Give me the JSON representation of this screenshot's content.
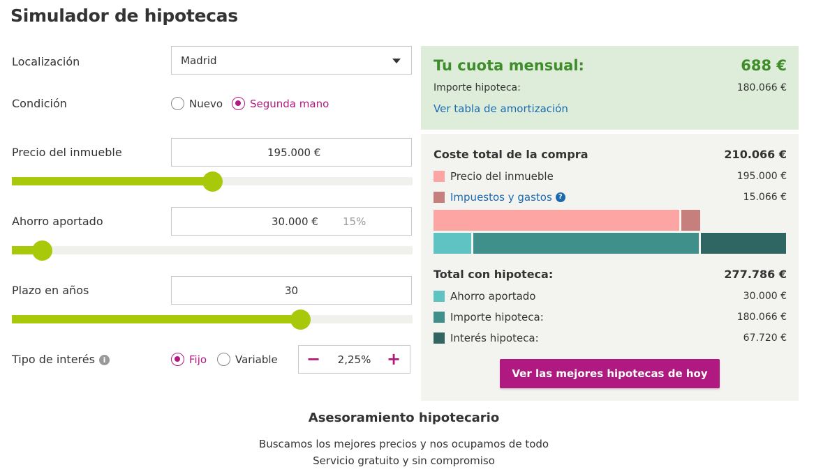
{
  "page": {
    "title": "Simulador de hipotecas"
  },
  "form": {
    "location": {
      "label": "Localización",
      "value": "Madrid"
    },
    "condition": {
      "label": "Condición",
      "options": [
        "Nuevo",
        "Segunda mano"
      ],
      "selected": "Segunda mano"
    },
    "price": {
      "label": "Precio del inmueble",
      "value": "195.000 €",
      "slider_fraction": 0.5
    },
    "savings": {
      "label": "Ahorro aportado",
      "value": "30.000 €",
      "percent": "15%",
      "slider_fraction": 0.075
    },
    "term": {
      "label": "Plazo en años",
      "value": "30",
      "slider_fraction": 0.72
    },
    "interest": {
      "label": "Tipo de interés",
      "options": [
        "Fijo",
        "Variable"
      ],
      "selected": "Fijo",
      "rate": "2,25%",
      "minus": "−",
      "plus": "+"
    }
  },
  "summary": {
    "cuota_label": "Tu cuota mensual:",
    "cuota_value": "688 €",
    "importe_label": "Importe hipoteca:",
    "importe_value": "180.066 €",
    "amortization_link": "Ver tabla de amortización",
    "coste_total_label": "Coste total de la compra",
    "coste_total_value": "210.066 €",
    "precio_label": "Precio del inmueble",
    "precio_value": "195.000 €",
    "impuestos_label": "Impuestos y gastos",
    "impuestos_value": "15.066 €",
    "total_hipoteca_label": "Total con hipoteca:",
    "total_hipoteca_value": "277.786 €",
    "ahorro_label": "Ahorro aportado",
    "ahorro_value": "30.000 €",
    "importe2_label": "Importe hipoteca:",
    "importe2_value": "180.066 €",
    "interes_label": "Interés hipoteca:",
    "interes_value": "67.720 €",
    "cta": "Ver las mejores hipotecas de hoy",
    "bars": {
      "compra": [
        {
          "name": "Precio del inmueble",
          "value": 195000,
          "color": "#fca5a3"
        },
        {
          "name": "Impuestos y gastos",
          "value": 15066,
          "color": "#c77f7e"
        }
      ],
      "hipoteca": [
        {
          "name": "Ahorro aportado",
          "value": 30000,
          "color": "#5fc3c3"
        },
        {
          "name": "Importe hipoteca",
          "value": 180066,
          "color": "#3f8f8b"
        },
        {
          "name": "Interés hipoteca",
          "value": 67720,
          "color": "#2f6663"
        }
      ]
    }
  },
  "advice": {
    "title": "Asesoramiento hipotecario",
    "line1": "Buscamos los mejores precios y nos ocupamos de todo",
    "line2": "Servicio gratuito y sin compromiso"
  },
  "colors": {
    "accent": "#b0197f",
    "slider": "#a8c90a",
    "green_text": "#3e8c2a",
    "link": "#1a6ab0"
  },
  "icons": {
    "info": "info-icon",
    "help": "question-icon",
    "caret": "chevron-down-icon"
  }
}
